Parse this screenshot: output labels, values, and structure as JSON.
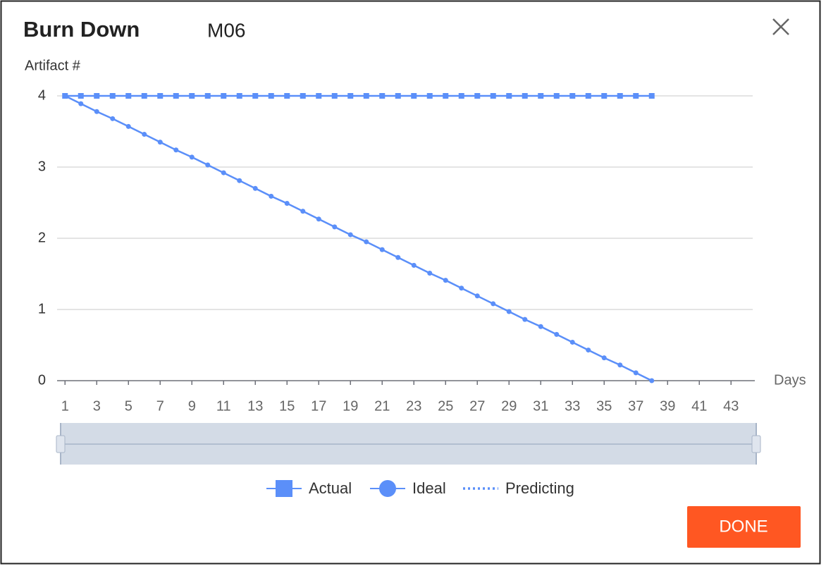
{
  "header": {
    "title": "Burn Down",
    "subtitle": "M06"
  },
  "chart_data": {
    "type": "line",
    "y_label": "Artifact #",
    "x_label": "Days",
    "x": [
      1,
      2,
      3,
      4,
      5,
      6,
      7,
      8,
      9,
      10,
      11,
      12,
      13,
      14,
      15,
      16,
      17,
      18,
      19,
      20,
      21,
      22,
      23,
      24,
      25,
      26,
      27,
      28,
      29,
      30,
      31,
      32,
      33,
      34,
      35,
      36,
      37,
      38
    ],
    "series": [
      {
        "name": "Actual",
        "color": "#5b8ff9",
        "marker": "square",
        "style": "solid",
        "values": [
          4,
          4,
          4,
          4,
          4,
          4,
          4,
          4,
          4,
          4,
          4,
          4,
          4,
          4,
          4,
          4,
          4,
          4,
          4,
          4,
          4,
          4,
          4,
          4,
          4,
          4,
          4,
          4,
          4,
          4,
          4,
          4,
          4,
          4,
          4,
          4,
          4,
          4
        ]
      },
      {
        "name": "Ideal",
        "color": "#5b8ff9",
        "marker": "circle",
        "style": "solid",
        "values": [
          4,
          3.89,
          3.78,
          3.68,
          3.57,
          3.46,
          3.35,
          3.24,
          3.14,
          3.03,
          2.92,
          2.81,
          2.7,
          2.59,
          2.49,
          2.38,
          2.27,
          2.16,
          2.05,
          1.95,
          1.84,
          1.73,
          1.62,
          1.51,
          1.41,
          1.3,
          1.19,
          1.08,
          0.97,
          0.86,
          0.76,
          0.65,
          0.54,
          0.43,
          0.32,
          0.22,
          0.11,
          0
        ]
      },
      {
        "name": "Predicting",
        "color": "#5b8ff9",
        "marker": "none",
        "style": "dotted",
        "values": [
          null,
          null,
          null,
          null,
          null,
          null,
          null,
          null,
          null,
          null,
          null,
          null,
          null,
          null,
          null,
          null,
          null,
          null,
          null,
          null,
          null,
          null,
          null,
          null,
          null,
          null,
          null,
          null,
          null,
          null,
          null,
          null,
          null,
          null,
          null,
          null,
          null,
          null
        ]
      }
    ],
    "xlim": [
      0.5,
      44.5
    ],
    "xticks": [
      1,
      3,
      5,
      7,
      9,
      11,
      13,
      15,
      17,
      19,
      21,
      23,
      25,
      27,
      29,
      31,
      33,
      35,
      37,
      39,
      41,
      43
    ],
    "ylim": [
      0,
      4
    ],
    "yticks": [
      0,
      1,
      2,
      3,
      4
    ],
    "grid": true,
    "legend": "bottom"
  },
  "footer": {
    "button": "DONE"
  }
}
